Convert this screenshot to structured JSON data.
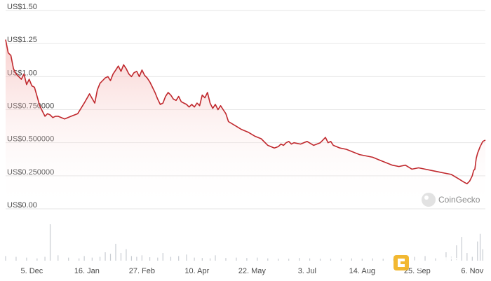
{
  "chart_data": {
    "type": "area",
    "title": "",
    "xlabel": "",
    "ylabel": "",
    "y_tick_labels": [
      "US$0.00",
      "US$0.250000",
      "US$0.500000",
      "US$0.750000",
      "US$1.00",
      "US$1.25",
      "US$1.50"
    ],
    "y_tick_values": [
      0,
      0.25,
      0.5,
      0.75,
      1.0,
      1.25,
      1.5
    ],
    "ylim": [
      0,
      1.5
    ],
    "x_tick_labels": [
      "5. Dec",
      "16. Jan",
      "27. Feb",
      "10. Apr",
      "22. May",
      "3. Jul",
      "14. Aug",
      "25. Sep",
      "6. Nov"
    ],
    "x_tick_days": [
      20,
      62,
      104,
      146,
      188,
      230,
      272,
      314,
      356
    ],
    "xlim_days": [
      0,
      366
    ],
    "grid": true,
    "series": [
      {
        "x": [
          0,
          2,
          4,
          6,
          8,
          10,
          12,
          14,
          16,
          18,
          20,
          22,
          24,
          26,
          28,
          30,
          32,
          34,
          36,
          38,
          40,
          45,
          50,
          55,
          60,
          64,
          68,
          70,
          72,
          74,
          76,
          78,
          80,
          82,
          84,
          86,
          88,
          90,
          92,
          94,
          96,
          98,
          100,
          102,
          104,
          106,
          108,
          110,
          112,
          114,
          116,
          118,
          120,
          122,
          124,
          126,
          128,
          130,
          132,
          134,
          136,
          138,
          140,
          142,
          144,
          146,
          148,
          150,
          152,
          154,
          156,
          158,
          160,
          162,
          164,
          166,
          168,
          170,
          175,
          180,
          185,
          190,
          195,
          200,
          205,
          208,
          210,
          212,
          214,
          216,
          218,
          220,
          225,
          230,
          235,
          240,
          242,
          244,
          246,
          248,
          250,
          255,
          260,
          265,
          270,
          275,
          280,
          285,
          290,
          295,
          300,
          305,
          310,
          315,
          320,
          325,
          330,
          335,
          340,
          345,
          350,
          352,
          354,
          356,
          357,
          358,
          359,
          360,
          362,
          364,
          366
        ],
        "values": [
          1.28,
          1.18,
          1.16,
          1.06,
          1.02,
          1.0,
          0.98,
          1.02,
          0.94,
          0.98,
          0.93,
          0.92,
          0.85,
          0.78,
          0.74,
          0.7,
          0.72,
          0.71,
          0.69,
          0.7,
          0.7,
          0.68,
          0.7,
          0.72,
          0.8,
          0.87,
          0.8,
          0.9,
          0.95,
          0.97,
          0.99,
          1.0,
          0.97,
          1.02,
          1.05,
          1.08,
          1.04,
          1.09,
          1.06,
          1.02,
          1.0,
          1.03,
          1.04,
          1.0,
          1.05,
          1.01,
          0.99,
          0.96,
          0.92,
          0.88,
          0.83,
          0.79,
          0.8,
          0.85,
          0.88,
          0.86,
          0.83,
          0.82,
          0.85,
          0.81,
          0.8,
          0.79,
          0.77,
          0.79,
          0.77,
          0.8,
          0.78,
          0.86,
          0.84,
          0.88,
          0.8,
          0.76,
          0.79,
          0.75,
          0.78,
          0.75,
          0.72,
          0.66,
          0.63,
          0.6,
          0.58,
          0.55,
          0.53,
          0.48,
          0.46,
          0.47,
          0.49,
          0.48,
          0.5,
          0.51,
          0.49,
          0.5,
          0.49,
          0.51,
          0.48,
          0.5,
          0.52,
          0.54,
          0.5,
          0.51,
          0.48,
          0.46,
          0.45,
          0.43,
          0.41,
          0.4,
          0.39,
          0.37,
          0.35,
          0.33,
          0.32,
          0.33,
          0.3,
          0.31,
          0.3,
          0.29,
          0.28,
          0.27,
          0.26,
          0.23,
          0.2,
          0.19,
          0.21,
          0.25,
          0.29,
          0.3,
          0.38,
          0.42,
          0.47,
          0.51,
          0.52
        ]
      }
    ],
    "volume": {
      "x": [
        0,
        8,
        16,
        24,
        30,
        34,
        40,
        48,
        56,
        60,
        66,
        72,
        76,
        80,
        84,
        88,
        92,
        96,
        100,
        104,
        110,
        116,
        120,
        126,
        132,
        138,
        144,
        150,
        156,
        160,
        168,
        176,
        184,
        192,
        200,
        208,
        216,
        224,
        232,
        240,
        248,
        256,
        264,
        272,
        280,
        288,
        296,
        304,
        312,
        320,
        328,
        336,
        340,
        344,
        348,
        352,
        356,
        360,
        362,
        364
      ],
      "values": [
        0.12,
        0.1,
        0.08,
        0.06,
        0.1,
        0.95,
        0.14,
        0.08,
        0.06,
        0.12,
        0.08,
        0.1,
        0.22,
        0.18,
        0.44,
        0.2,
        0.3,
        0.12,
        0.1,
        0.14,
        0.09,
        0.08,
        0.2,
        0.1,
        0.12,
        0.16,
        0.08,
        0.07,
        0.06,
        0.14,
        0.07,
        0.08,
        0.07,
        0.08,
        0.06,
        0.05,
        0.05,
        0.07,
        0.06,
        0.05,
        0.05,
        0.05,
        0.06,
        0.05,
        0.06,
        0.05,
        0.05,
        0.08,
        0.1,
        0.12,
        0.06,
        0.22,
        0.1,
        0.4,
        0.62,
        0.2,
        0.1,
        0.5,
        0.7,
        0.3
      ]
    },
    "colors": {
      "line": "#c0282d",
      "area_top": "#f2a9a6",
      "grid": "#e6e6e6",
      "volume": "#c8ccd2",
      "text": "#4a4a4a"
    }
  },
  "watermarks": {
    "coingecko": "CoinGecko",
    "jinse": "金色财经"
  }
}
